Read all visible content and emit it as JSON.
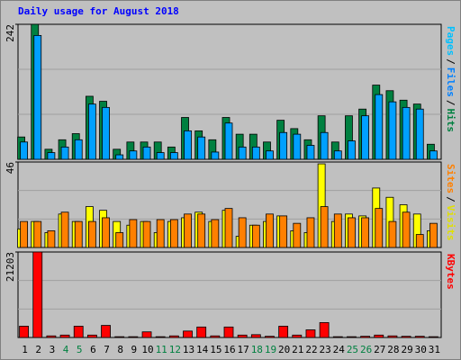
{
  "chart_data": [
    {
      "type": "bar",
      "title": "Daily usage for August 2018",
      "ylim": [
        0,
        242
      ],
      "yticks": [
        242
      ],
      "series": [
        {
          "name": "Hits",
          "color": "#008040",
          "values": [
            40,
            242,
            18,
            35,
            46,
            113,
            104,
            18,
            31,
            31,
            31,
            22,
            75,
            51,
            35,
            75,
            45,
            45,
            31,
            70,
            55,
            35,
            78,
            31,
            78,
            90,
            133,
            123,
            106,
            99,
            27
          ]
        },
        {
          "name": "Files",
          "color": "#00A0FF",
          "values": [
            31,
            222,
            12,
            22,
            35,
            99,
            93,
            8,
            15,
            22,
            12,
            12,
            51,
            40,
            13,
            65,
            22,
            22,
            15,
            48,
            45,
            25,
            48,
            15,
            33,
            78,
            116,
            103,
            93,
            90,
            15
          ]
        }
      ],
      "legend_labels": [
        {
          "text": "Pages",
          "color": "#00C0FF"
        },
        {
          "text": "/",
          "color": "#000000"
        },
        {
          "text": "Files",
          "color": "#0080FF"
        },
        {
          "text": "/",
          "color": "#000000"
        },
        {
          "text": "Hits",
          "color": "#008040"
        }
      ]
    },
    {
      "type": "bar",
      "ylim": [
        0,
        46
      ],
      "yticks": [
        46
      ],
      "series": [
        {
          "name": "Visits",
          "color": "#FFFF00",
          "values": [
            10,
            14,
            8,
            18,
            14,
            22,
            20,
            14,
            12,
            14,
            8,
            14,
            16,
            19,
            14,
            20,
            6,
            12,
            14,
            17,
            9,
            8,
            45,
            14,
            18,
            17,
            32,
            27,
            23,
            18,
            9
          ]
        },
        {
          "name": "Sites",
          "color": "#FF8000",
          "values": [
            14,
            14,
            9,
            19,
            14,
            14,
            16,
            8,
            15,
            14,
            15,
            15,
            18,
            18,
            15,
            21,
            16,
            12,
            18,
            17,
            13,
            16,
            22,
            18,
            16,
            16,
            21,
            14,
            19,
            7,
            13
          ]
        }
      ],
      "legend_labels": [
        {
          "text": "Sites",
          "color": "#FF8000"
        },
        {
          "text": "/",
          "color": "#000000"
        },
        {
          "text": "Visits",
          "color": "#E0E000"
        }
      ]
    },
    {
      "type": "bar",
      "ylim": [
        0,
        21203
      ],
      "yticks": [
        21203
      ],
      "categories": [
        "1",
        "2",
        "3",
        "4",
        "5",
        "6",
        "7",
        "8",
        "9",
        "10",
        "11",
        "12",
        "13",
        "14",
        "15",
        "16",
        "17",
        "18",
        "19",
        "20",
        "21",
        "22",
        "23",
        "24",
        "25",
        "26",
        "27",
        "28",
        "29",
        "30",
        "31"
      ],
      "category_colors": [
        "#000000",
        "#000000",
        "#000000",
        "#008040",
        "#008040",
        "#000000",
        "#000000",
        "#000000",
        "#000000",
        "#000000",
        "#008040",
        "#008040",
        "#000000",
        "#000000",
        "#000000",
        "#000000",
        "#000000",
        "#008040",
        "#008040",
        "#000000",
        "#000000",
        "#000000",
        "#000000",
        "#000000",
        "#008040",
        "#008040",
        "#000000",
        "#000000",
        "#000000",
        "#000000",
        "#000000"
      ],
      "series": [
        {
          "name": "KBytes",
          "color": "#FF0000",
          "values": [
            2800,
            21203,
            400,
            600,
            2800,
            600,
            3000,
            200,
            200,
            1400,
            200,
            400,
            1600,
            2600,
            400,
            2600,
            600,
            700,
            300,
            2800,
            600,
            1900,
            3700,
            200,
            200,
            300,
            600,
            400,
            300,
            300,
            200
          ]
        }
      ],
      "legend_labels": [
        {
          "text": "KBytes",
          "color": "#FF0000"
        }
      ]
    }
  ]
}
